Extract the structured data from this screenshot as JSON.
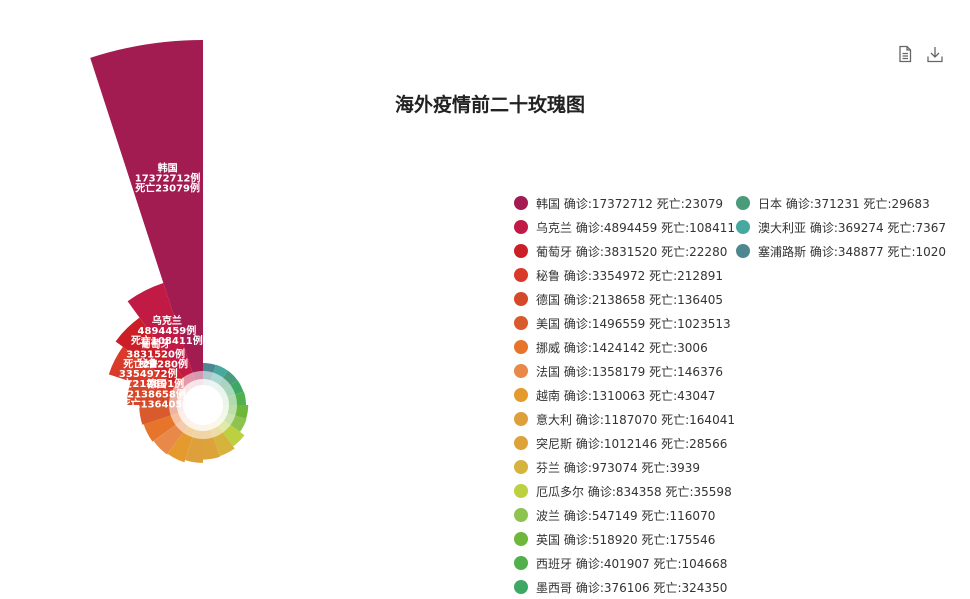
{
  "title": "海外疫情前二十玫瑰图",
  "toolbox": {
    "icons": [
      "data-view-icon",
      "save-image-icon"
    ]
  },
  "chart_data": {
    "type": "pie",
    "rose_type": "radius",
    "title": "海外疫情前二十玫瑰图",
    "legend_position": "right",
    "label_confirmed": "确诊",
    "label_deaths": "死亡",
    "label_unit": "例",
    "categories": [
      "韩国",
      "乌克兰",
      "葡萄牙",
      "秘鲁",
      "德国",
      "美国",
      "挪威",
      "法国",
      "越南",
      "意大利",
      "突尼斯",
      "芬兰",
      "厄瓜多尔",
      "波兰",
      "英国",
      "西班牙",
      "墨西哥",
      "日本",
      "澳大利亚",
      "塞浦路斯"
    ],
    "confirmed": [
      17372712,
      4894459,
      3831520,
      3354972,
      2138658,
      1496559,
      1424142,
      1358179,
      1310063,
      1187070,
      1012146,
      973074,
      834358,
      547149,
      518920,
      401907,
      376106,
      371231,
      369274,
      348877
    ],
    "deaths": [
      23079,
      108411,
      22280,
      212891,
      136405,
      1023513,
      3006,
      146376,
      43047,
      164041,
      28566,
      3939,
      35598,
      116070,
      175546,
      104668,
      324350,
      29683,
      7367,
      1020
    ],
    "colors": [
      "#a21b51",
      "#c11a45",
      "#cc1e26",
      "#d93a2a",
      "#d5492b",
      "#d95a2d",
      "#e6742a",
      "#e8894a",
      "#e59a2e",
      "#dda03a",
      "#dea23a",
      "#d5b33c",
      "#bcd040",
      "#8ec34f",
      "#6db73a",
      "#51b04b",
      "#3da864",
      "#4a9b7a",
      "#46a89e",
      "#4d8890"
    ],
    "labeled_count": 5
  }
}
